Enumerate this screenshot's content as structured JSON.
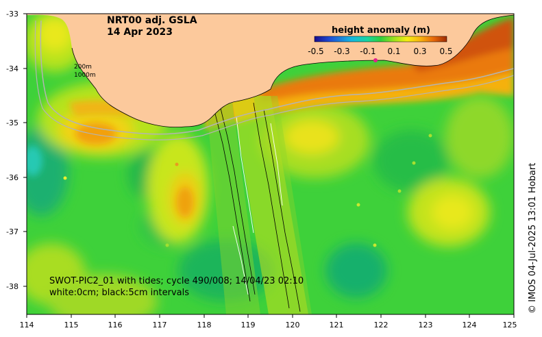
{
  "title": {
    "line1": "NRT00 adj. GSLA",
    "line2": "14 Apr 2023"
  },
  "colorbar": {
    "label": "height anomaly (m)",
    "ticks": [
      "-0.5",
      "-0.3",
      "-0.1",
      "0.1",
      "0.3",
      "0.5"
    ],
    "colors": [
      "#1a0d8c",
      "#1f4fd6",
      "#16b7e0",
      "#19d6a0",
      "#25c94a",
      "#9be21e",
      "#f5ee12",
      "#f9b40e",
      "#f07a0b",
      "#d64b06",
      "#9c2b02"
    ]
  },
  "depth_labels": {
    "shallow": "200m",
    "deep": "1000m"
  },
  "axes": {
    "x_ticks": [
      "114",
      "115",
      "116",
      "117",
      "118",
      "119",
      "120",
      "121",
      "122",
      "123",
      "124",
      "125"
    ],
    "y_ticks": [
      "-33",
      "-34",
      "-35",
      "-36",
      "-37",
      "-38"
    ]
  },
  "annotation": {
    "line1": "SWOT-PIC2_01 with tides; cycle 490/008; 14/04/23 02:10",
    "line2": "white:0cm; black:5cm intervals"
  },
  "credit": "© IMOS 04-Jul-2025 13:01 Hobart",
  "colors": {
    "land": "#fcc99c",
    "sea_base": "#3ed13a",
    "frame": "#000000"
  }
}
